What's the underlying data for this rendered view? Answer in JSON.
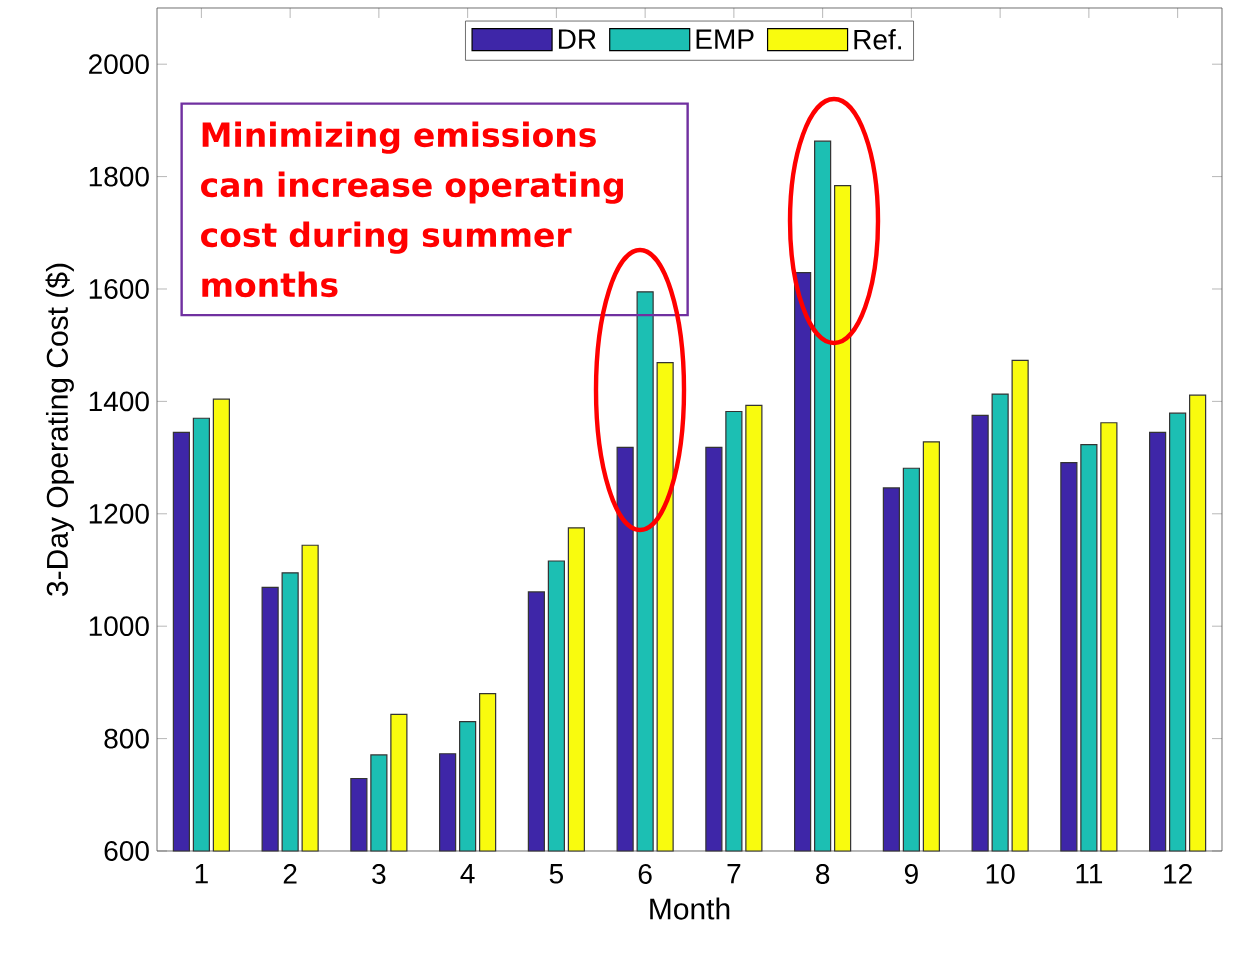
{
  "chart_data": {
    "type": "bar",
    "xlabel": "Month",
    "ylabel": "3-Day Operating Cost ($)",
    "categories": [
      "1",
      "2",
      "3",
      "4",
      "5",
      "6",
      "7",
      "8",
      "9",
      "10",
      "11",
      "12"
    ],
    "series": [
      {
        "name": "DR",
        "color": "#3e26a8",
        "values": [
          1345,
          1069,
          729,
          773,
          1061,
          1318,
          1318,
          1629,
          1246,
          1375,
          1291,
          1345
        ]
      },
      {
        "name": "EMP",
        "color": "#1cbfb3",
        "values": [
          1370,
          1095,
          771,
          830,
          1116,
          1595,
          1382,
          1863,
          1281,
          1413,
          1323,
          1379
        ]
      },
      {
        "name": "Ref.",
        "color": "#f9fb0e",
        "values": [
          1404,
          1144,
          843,
          880,
          1175,
          1469,
          1393,
          1784,
          1328,
          1473,
          1362,
          1411
        ]
      }
    ],
    "ylim": [
      600,
      2100
    ],
    "yticks": [
      600,
      800,
      1000,
      1200,
      1400,
      1600,
      1800,
      2000
    ],
    "legend": "top",
    "annotations": [
      "Minimizing emissions can increase operating cost during summer months"
    ]
  }
}
